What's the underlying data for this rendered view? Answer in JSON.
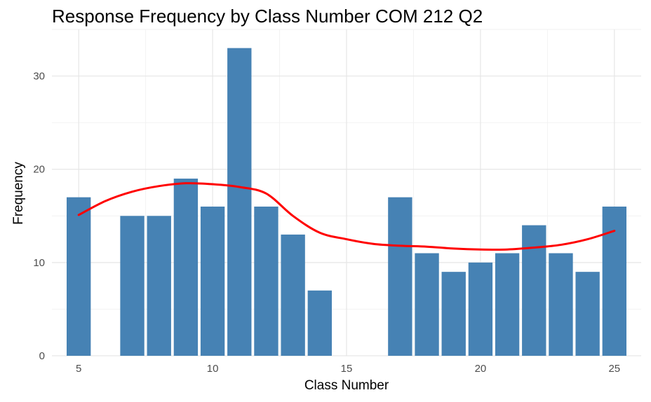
{
  "chart_data": {
    "type": "bar",
    "title": "Response Frequency by Class Number COM 212 Q2",
    "xlabel": "Class Number",
    "ylabel": "Frequency",
    "x": [
      5,
      7,
      8,
      9,
      10,
      11,
      12,
      13,
      14,
      17,
      18,
      19,
      20,
      21,
      22,
      23,
      24,
      25
    ],
    "values": [
      17,
      15,
      15,
      19,
      16,
      33,
      16,
      13,
      7,
      17,
      11,
      9,
      10,
      11,
      14,
      11,
      9,
      16
    ],
    "xlim": [
      4,
      26
    ],
    "ylim": [
      0,
      35
    ],
    "x_ticks": [
      5,
      10,
      15,
      20,
      25
    ],
    "y_ticks": [
      0,
      10,
      20,
      30
    ],
    "grid": true,
    "bar_color": "#4682B4",
    "smooth_line": {
      "color": "#FF0000",
      "x": [
        5,
        6,
        7,
        8,
        9,
        10,
        11,
        12,
        13,
        14,
        15,
        16,
        17,
        18,
        19,
        20,
        21,
        22,
        23,
        24,
        25
      ],
      "y": [
        15.1,
        16.6,
        17.6,
        18.2,
        18.5,
        18.4,
        18.1,
        17.4,
        15.0,
        13.2,
        12.5,
        12.0,
        11.8,
        11.7,
        11.5,
        11.4,
        11.4,
        11.6,
        11.9,
        12.5,
        13.4
      ]
    }
  }
}
